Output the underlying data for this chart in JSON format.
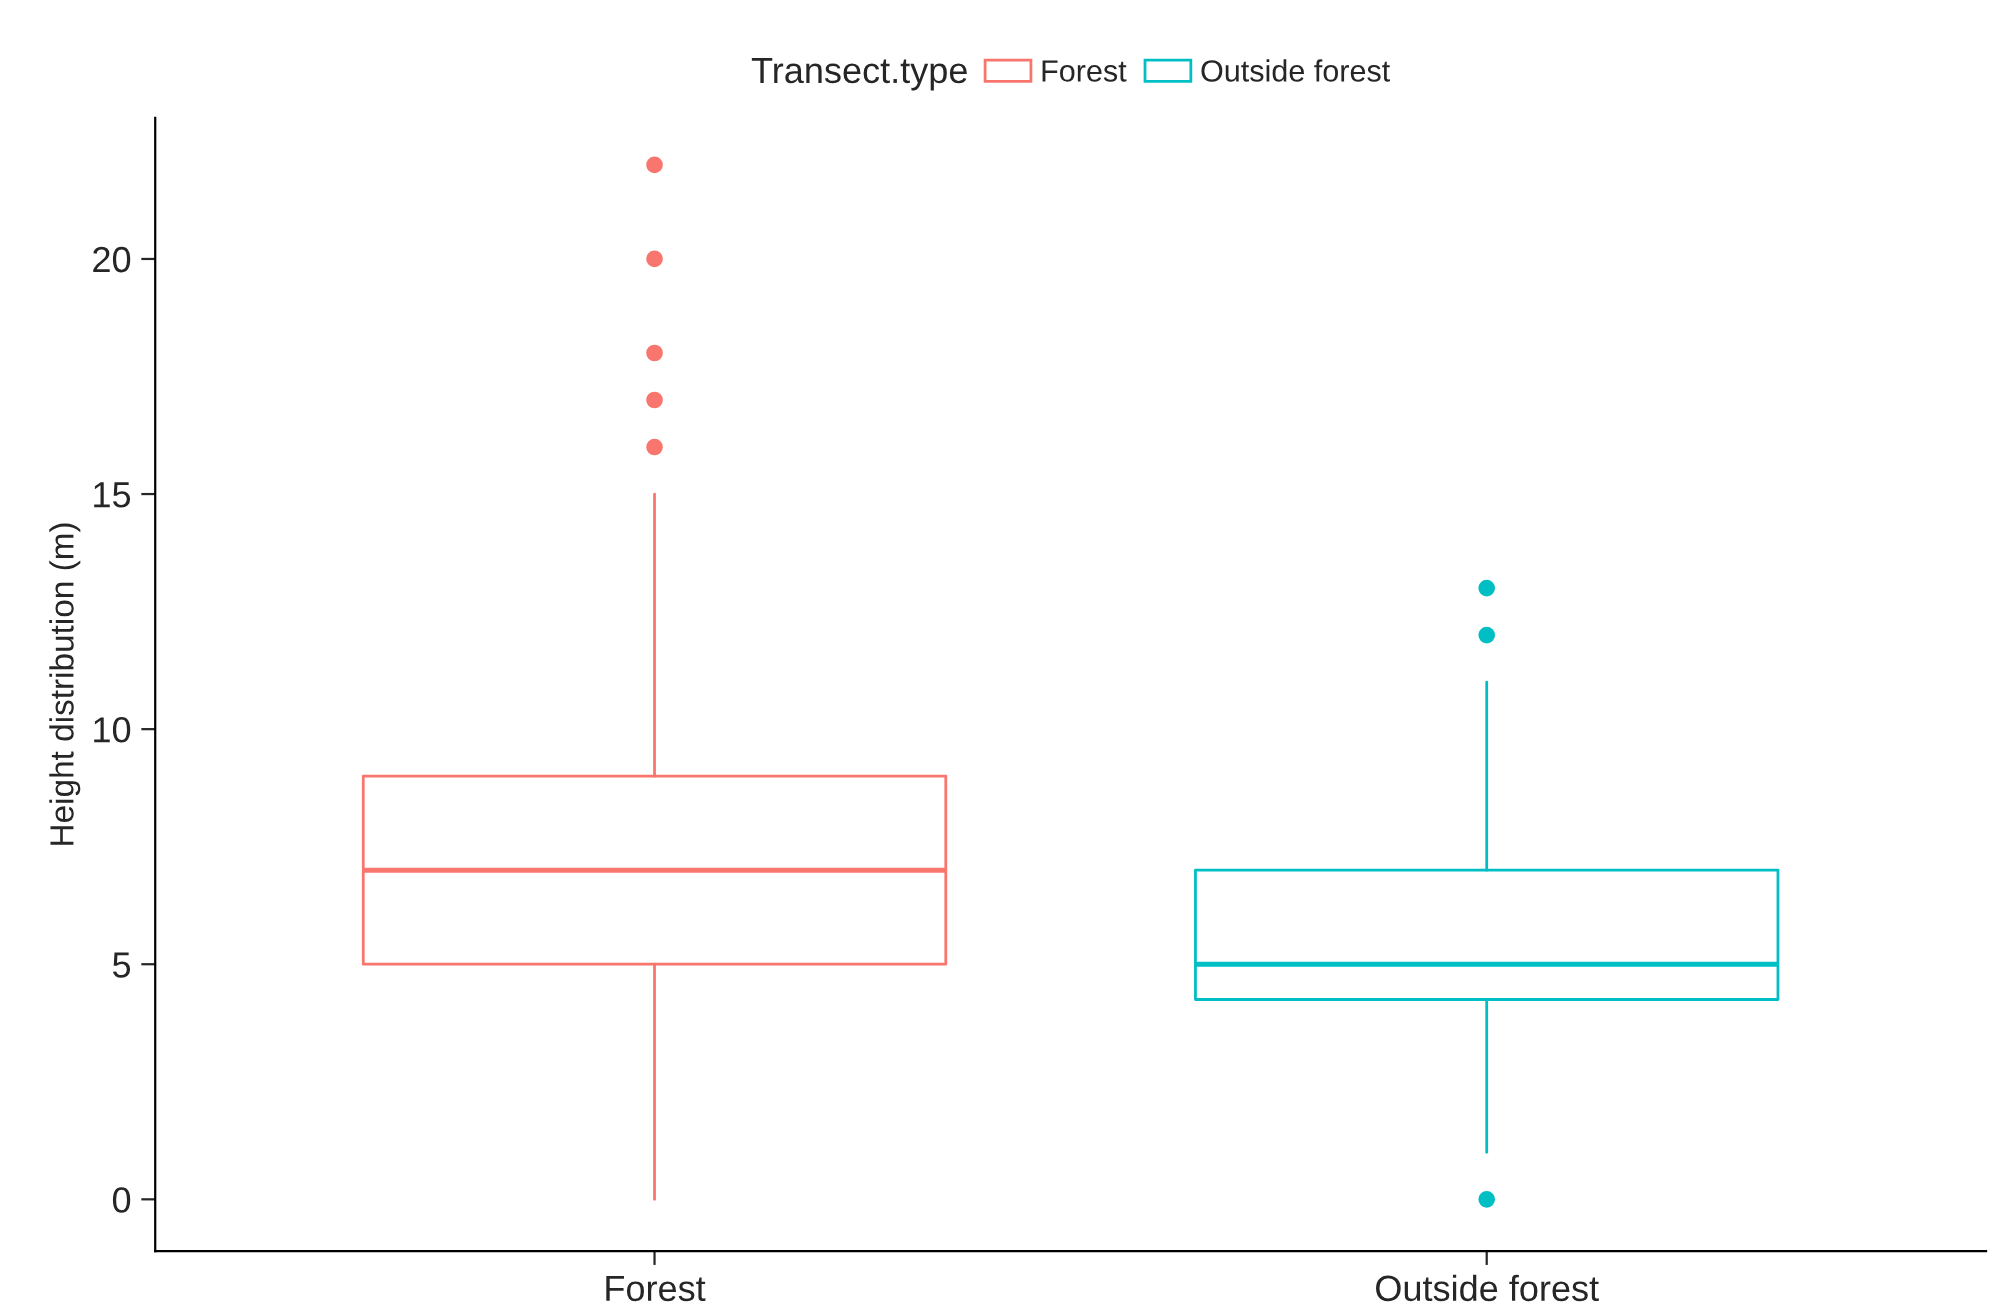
{
  "chart_data": {
    "type": "box",
    "ylabel": "Height distribution (m)",
    "legend_title": "Transect.type",
    "categories": [
      "Forest",
      "Outside forest"
    ],
    "series": [
      {
        "name": "Forest",
        "color": "#f8766d",
        "boxes": [
          {
            "low": 0,
            "q1": 5,
            "median": 7,
            "q3": 9,
            "high": 15,
            "outliers": [
              16,
              17,
              18,
              20,
              22
            ]
          },
          null
        ]
      },
      {
        "name": "Outside forest",
        "color": "#00bfc4",
        "boxes": [
          null,
          {
            "low": 1,
            "q1": 4.25,
            "median": 5,
            "q3": 7,
            "high": 11,
            "outliers": [
              0,
              12,
              13
            ]
          }
        ]
      }
    ],
    "ylim": [
      -1.1,
      23
    ],
    "yticks": [
      0,
      5,
      10,
      15,
      20
    ],
    "grid": false,
    "legend": "top",
    "marker": "circle"
  }
}
